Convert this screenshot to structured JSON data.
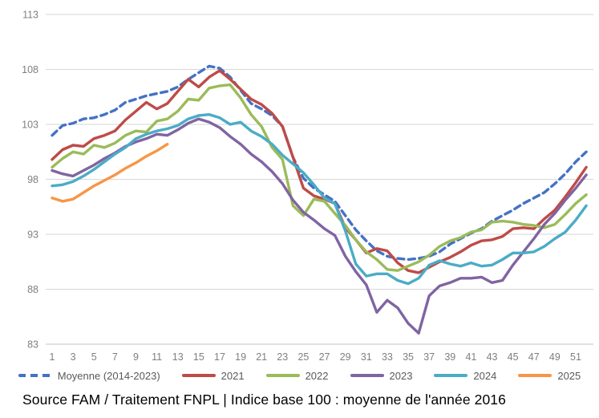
{
  "caption": "Source FAM / Traitement FNPL | Indice base 100 : moyenne de l'année 2016",
  "chart_data": {
    "type": "line",
    "title": "",
    "xlabel": "",
    "ylabel": "",
    "x": [
      1,
      2,
      3,
      4,
      5,
      6,
      7,
      8,
      9,
      10,
      11,
      12,
      13,
      14,
      15,
      16,
      17,
      18,
      19,
      20,
      21,
      22,
      23,
      24,
      25,
      26,
      27,
      28,
      29,
      30,
      31,
      32,
      33,
      34,
      35,
      36,
      37,
      38,
      39,
      40,
      41,
      42,
      43,
      44,
      45,
      46,
      47,
      48,
      49,
      50,
      51,
      52
    ],
    "x_tick_labels": [
      1,
      3,
      5,
      7,
      9,
      11,
      13,
      15,
      17,
      19,
      21,
      23,
      25,
      27,
      29,
      31,
      33,
      35,
      37,
      39,
      41,
      43,
      45,
      47,
      49,
      51
    ],
    "ylim": [
      83,
      113
    ],
    "y_ticks": [
      83,
      88,
      93,
      98,
      103,
      108,
      113
    ],
    "grid": "horizontal",
    "grid_color": "#d6d6d6",
    "axis_text_color": "#7f7f7f",
    "legend_position": "bottom",
    "series": [
      {
        "name": "Moyenne (2014-2023)",
        "color": "#4472c4",
        "dashed": true,
        "values": [
          102.0,
          102.9,
          103.1,
          103.5,
          103.6,
          103.9,
          104.3,
          105.0,
          105.3,
          105.6,
          105.8,
          106.0,
          106.4,
          107.1,
          107.7,
          108.3,
          108.1,
          107.3,
          106.1,
          104.9,
          104.4,
          103.8,
          102.8,
          100.0,
          98.1,
          97.2,
          96.6,
          96.0,
          94.7,
          93.4,
          92.4,
          91.5,
          91.0,
          90.8,
          90.7,
          90.8,
          91.0,
          91.4,
          92.1,
          92.6,
          93.1,
          93.5,
          94.2,
          94.7,
          95.2,
          95.8,
          96.3,
          96.8,
          97.6,
          98.5,
          99.6,
          100.5
        ]
      },
      {
        "name": "2021",
        "color": "#be4b48",
        "dashed": false,
        "values": [
          99.8,
          100.7,
          101.1,
          101.0,
          101.7,
          102.0,
          102.4,
          103.4,
          104.2,
          105.0,
          104.4,
          104.9,
          106.0,
          107.1,
          106.4,
          107.3,
          107.9,
          107.1,
          106.2,
          105.3,
          104.8,
          104.0,
          102.8,
          100.0,
          97.2,
          96.5,
          96.2,
          95.8,
          93.6,
          92.5,
          91.3,
          91.7,
          91.5,
          90.4,
          89.7,
          89.5,
          90.0,
          90.5,
          90.9,
          91.4,
          92.0,
          92.4,
          92.5,
          92.8,
          93.5,
          93.6,
          93.5,
          94.4,
          95.2,
          96.4,
          97.7,
          99.1
        ]
      },
      {
        "name": "2022",
        "color": "#9bbb59",
        "dashed": false,
        "values": [
          99.1,
          99.9,
          100.5,
          100.3,
          101.1,
          100.9,
          101.3,
          102.0,
          102.4,
          102.3,
          103.3,
          103.5,
          104.2,
          105.3,
          105.2,
          106.3,
          106.5,
          106.6,
          105.4,
          103.9,
          102.8,
          100.9,
          99.8,
          95.6,
          94.7,
          96.2,
          96.0,
          94.9,
          93.8,
          92.5,
          91.4,
          90.7,
          89.8,
          89.7,
          90.1,
          90.5,
          91.1,
          91.9,
          92.4,
          92.7,
          93.2,
          93.4,
          94.1,
          94.2,
          94.1,
          93.9,
          93.8,
          93.6,
          93.9,
          94.8,
          95.8,
          96.6
        ]
      },
      {
        "name": "2023",
        "color": "#8064a2",
        "dashed": false,
        "values": [
          98.8,
          98.5,
          98.3,
          98.8,
          99.3,
          99.9,
          100.4,
          101.0,
          101.4,
          101.7,
          102.1,
          102.0,
          102.5,
          103.1,
          103.5,
          103.2,
          102.7,
          101.9,
          101.2,
          100.3,
          99.6,
          98.7,
          97.6,
          96.1,
          95.0,
          94.3,
          93.5,
          92.9,
          91.0,
          89.6,
          88.4,
          85.9,
          87.0,
          86.3,
          84.9,
          84.0,
          87.4,
          88.3,
          88.6,
          89.0,
          89.0,
          89.1,
          88.6,
          88.8,
          90.2,
          91.4,
          92.6,
          93.9,
          94.9,
          96.1,
          97.2,
          98.4
        ]
      },
      {
        "name": "2024",
        "color": "#4bacc6",
        "dashed": false,
        "values": [
          97.4,
          97.5,
          97.8,
          98.3,
          98.9,
          99.6,
          100.3,
          100.9,
          101.7,
          102.1,
          102.4,
          102.6,
          102.9,
          103.5,
          103.8,
          103.9,
          103.6,
          103.0,
          103.2,
          102.4,
          101.9,
          101.2,
          100.2,
          99.4,
          98.6,
          97.5,
          96.3,
          95.8,
          93.3,
          90.3,
          89.2,
          89.4,
          89.4,
          88.8,
          88.5,
          89.0,
          90.2,
          90.6,
          90.3,
          90.1,
          90.4,
          90.1,
          90.2,
          90.7,
          91.3,
          91.3,
          91.4,
          91.9,
          92.6,
          93.2,
          94.3,
          95.6
        ]
      },
      {
        "name": "2025",
        "color": "#f79646",
        "dashed": false,
        "values": [
          96.3,
          96.0,
          96.2,
          96.8,
          97.4,
          97.9,
          98.4,
          99.0,
          99.5,
          100.1,
          100.6,
          101.2,
          null,
          null,
          null,
          null,
          null,
          null,
          null,
          null,
          null,
          null,
          null,
          null,
          null,
          null,
          null,
          null,
          null,
          null,
          null,
          null,
          null,
          null,
          null,
          null,
          null,
          null,
          null,
          null,
          null,
          null,
          null,
          null,
          null,
          null,
          null,
          null,
          null,
          null,
          null,
          null
        ]
      }
    ]
  }
}
